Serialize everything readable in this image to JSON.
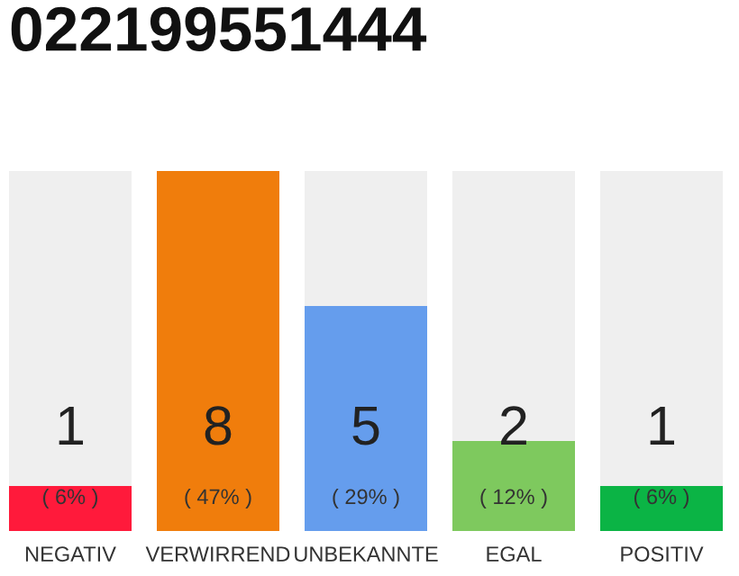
{
  "chart_data": {
    "type": "bar",
    "title": "022199551444",
    "categories": [
      "NEGATIV",
      "VERWIRREND",
      "UNBEKANNTE",
      "EGAL",
      "POSITIV"
    ],
    "values": [
      1,
      8,
      5,
      2,
      1
    ],
    "colors": [
      "#ff1a3b",
      "#f07d0c",
      "#659ded",
      "#7ec95e",
      "#0bb445"
    ],
    "data_labels": true,
    "annotations": [
      "( 6% )",
      "( 47% )",
      "( 29% )",
      "( 12% )",
      "( 6% )"
    ],
    "grid": false,
    "legend": false
  }
}
